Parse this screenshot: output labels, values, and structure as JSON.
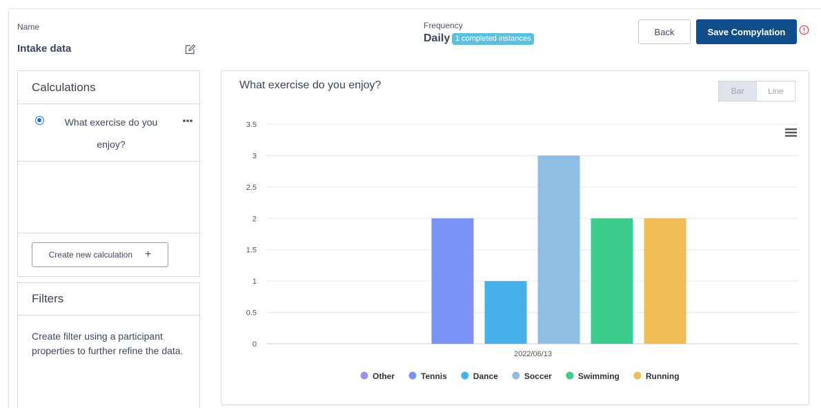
{
  "header": {
    "name_label": "Name",
    "name_value": "Intake data",
    "frequency_label": "Frequency",
    "frequency_value": "Daily",
    "frequency_badge": "1 completed instances",
    "back_label": "Back",
    "save_label": "Save Compylation"
  },
  "calculations": {
    "title": "Calculations",
    "items": [
      {
        "label": "What exercise do you enjoy?",
        "selected": true
      }
    ],
    "create_label": "Create new calculation",
    "create_icon": "+"
  },
  "filters": {
    "title": "Filters",
    "description": "Create filter using a participant properties to further refine the data."
  },
  "chart_panel": {
    "title": "What exercise do you enjoy?",
    "toggle": {
      "bar_label": "Bar",
      "line_label": "Line",
      "active": "bar"
    }
  },
  "chart_data": {
    "type": "bar",
    "title": "What exercise do you enjoy?",
    "categories": [
      "2022/06/13"
    ],
    "series": [
      {
        "name": "Other",
        "values": [
          0
        ],
        "color": "#a58fe0"
      },
      {
        "name": "Tennis",
        "values": [
          2
        ],
        "color": "#7b93f6"
      },
      {
        "name": "Dance",
        "values": [
          1
        ],
        "color": "#48b0e8"
      },
      {
        "name": "Soccer",
        "values": [
          3
        ],
        "color": "#8fbde3"
      },
      {
        "name": "Swimming",
        "values": [
          2
        ],
        "color": "#3dcd8b"
      },
      {
        "name": "Running",
        "values": [
          2
        ],
        "color": "#f1bc55"
      }
    ],
    "yticks": [
      "0",
      "0.5",
      "1",
      "1.5",
      "2",
      "2.5",
      "3",
      "3.5"
    ],
    "ylim": [
      0,
      3.5
    ],
    "xlabel": "",
    "ylabel": "",
    "legend_position": "bottom"
  },
  "colors": {
    "primary": "#0f4e8a",
    "badge": "#5bc0de",
    "alert": "#e53935"
  }
}
